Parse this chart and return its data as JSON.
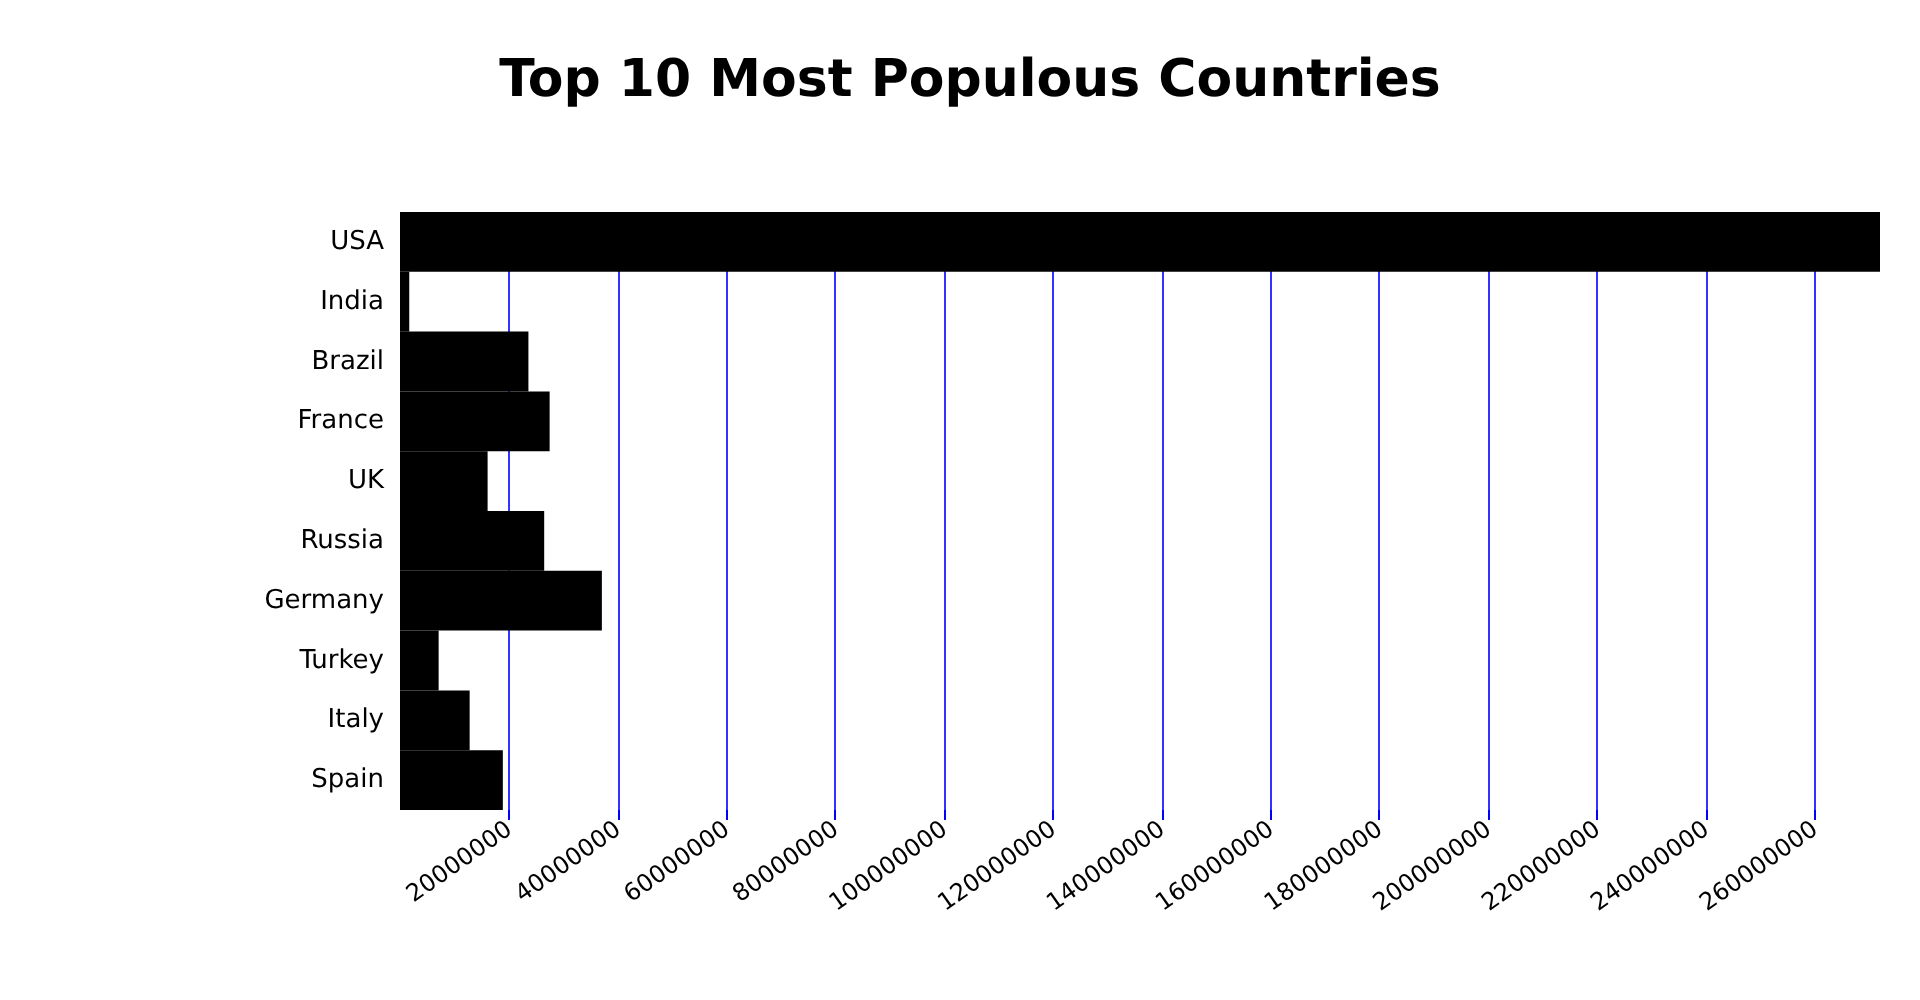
{
  "chart_data": {
    "type": "bar",
    "orientation": "horizontal",
    "title": "Top 10 Most Populous Countries",
    "categories": [
      "USA",
      "India",
      "Brazil",
      "France",
      "UK",
      "Russia",
      "Germany",
      "Turkey",
      "Italy",
      "Spain"
    ],
    "values": [
      272000000,
      1700000,
      23600000,
      27500000,
      16100000,
      26500000,
      37100000,
      7100000,
      12800000,
      18900000
    ],
    "color": "#000000",
    "xlim": [
      0,
      272000000
    ],
    "xticks": [
      20000000,
      40000000,
      60000000,
      80000000,
      100000000,
      120000000,
      140000000,
      160000000,
      180000000,
      200000000,
      220000000,
      240000000,
      260000000
    ],
    "grid": "x"
  }
}
